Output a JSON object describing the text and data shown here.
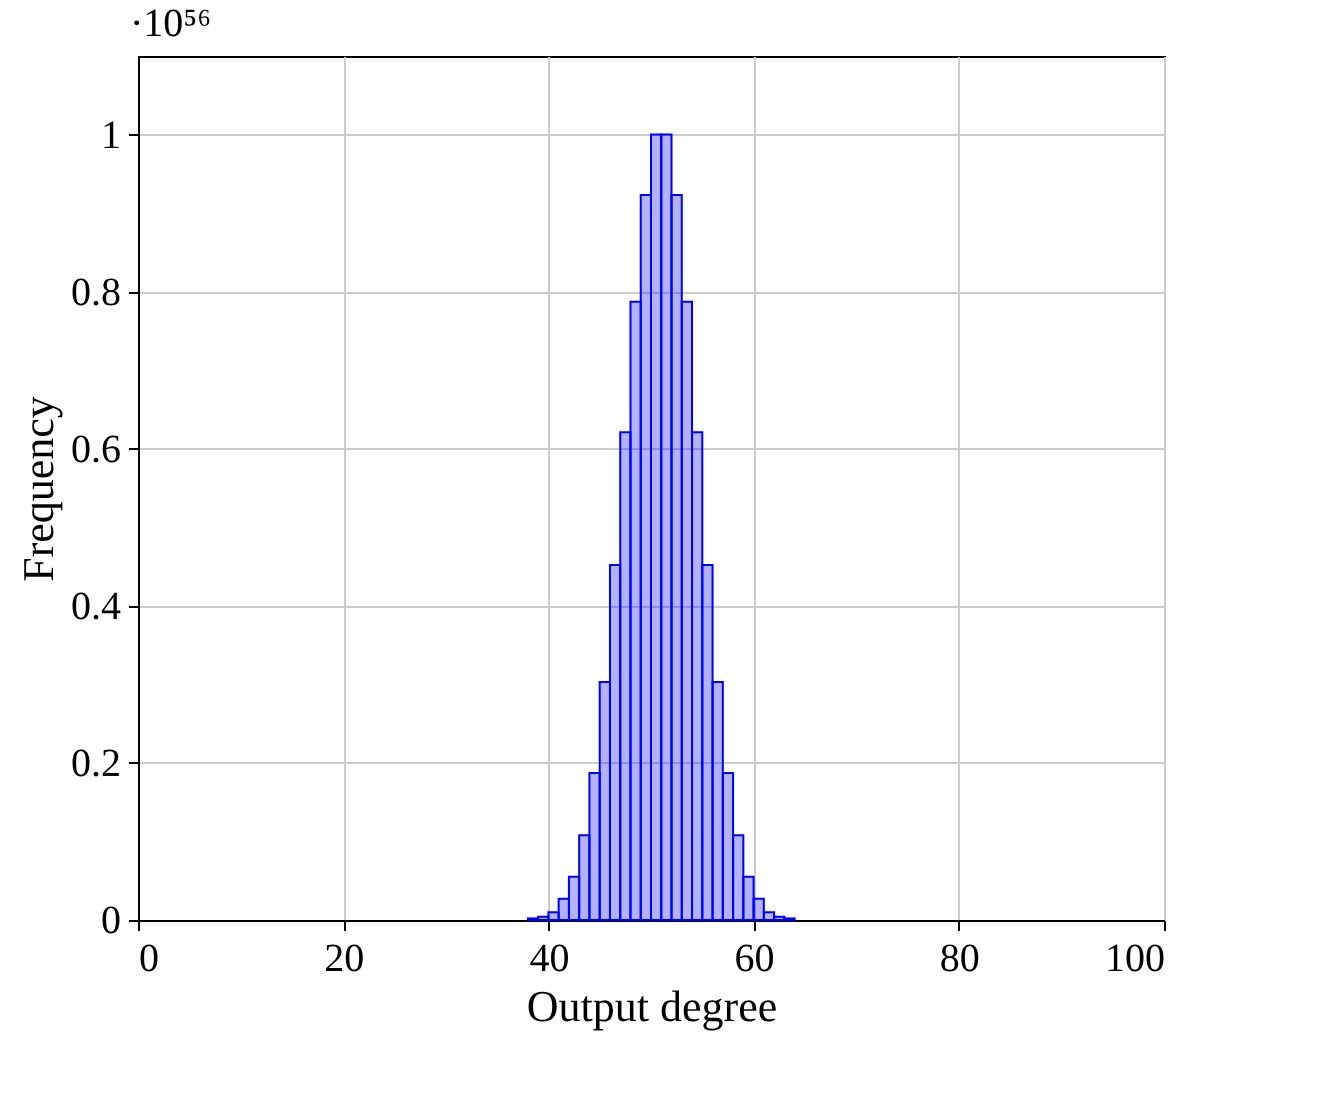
{
  "chart_data": {
    "type": "histogram",
    "xlabel": "Output degree",
    "ylabel": "Frequency",
    "annotations": [
      "·10⁵⁶"
    ],
    "bins": [
      38,
      39,
      40,
      41,
      42,
      43,
      44,
      45,
      46,
      47,
      48,
      49,
      50,
      51,
      52,
      53,
      54,
      55,
      56,
      57,
      58,
      59,
      60,
      61,
      62,
      63,
      64
    ],
    "values": [
      0.002,
      0.004,
      0.01,
      0.027,
      0.055,
      0.108,
      0.187,
      0.303,
      0.452,
      0.621,
      0.787,
      0.923,
      1,
      1,
      0.923,
      0.787,
      0.621,
      0.452,
      0.303,
      0.187,
      0.108,
      0.055,
      0.027,
      0.01,
      0.004,
      0.002
    ],
    "color": "#0000ff",
    "xlim": [
      0,
      100
    ],
    "xticks": [
      0,
      20,
      40,
      60,
      80,
      100
    ],
    "ylim": [
      0,
      1.1
    ],
    "yticks": [
      0,
      0.2,
      0.4,
      0.6,
      0.8,
      1
    ],
    "grid": true
  }
}
